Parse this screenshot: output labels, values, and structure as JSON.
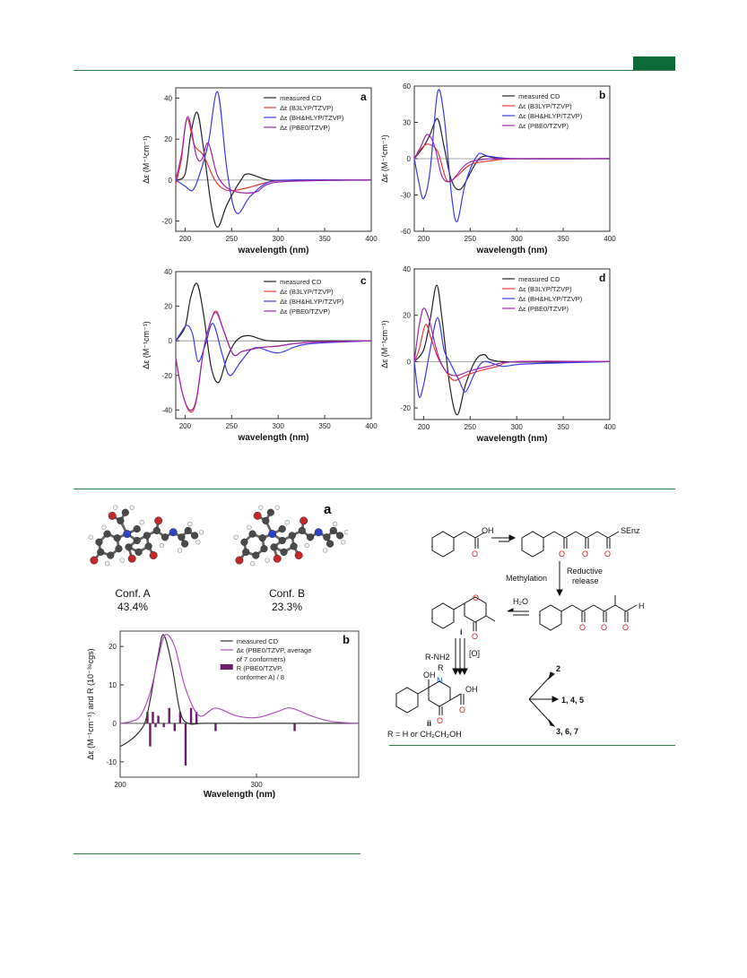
{
  "header": {
    "accent_color": "#0b6b36"
  },
  "cd_panels": [
    {
      "letter": "a",
      "ylabel": "Δε (M⁻¹cm⁻¹)",
      "xlabel": "wavelength (nm)",
      "yticks": [
        "40",
        "20",
        "0",
        "-20"
      ],
      "xticks": [
        "200",
        "250",
        "300",
        "350",
        "400"
      ],
      "legend": [
        "measured CD",
        "Δε (B3LYP/TZVP)",
        "Δε (BH&HLYP/TZVP)",
        "Δε (PBE0/TZVP)"
      ]
    },
    {
      "letter": "b",
      "ylabel": "Δε (M⁻¹cm⁻¹)",
      "xlabel": "wavelength (nm)",
      "yticks": [
        "60",
        "30",
        "0",
        "-30",
        "-60"
      ],
      "xticks": [
        "200",
        "250",
        "300",
        "350",
        "400"
      ],
      "legend": [
        "measured CD",
        "Δε (B3LYP/TZVP)",
        "Δε (BH&HLYP/TZVP)",
        "Δε (PBE0/TZVP)"
      ]
    },
    {
      "letter": "c",
      "ylabel": "Δε (M⁻¹cm⁻¹)",
      "xlabel": "wavelength (nm)",
      "yticks": [
        "40",
        "20",
        "0",
        "-20",
        "-40"
      ],
      "xticks": [
        "200",
        "250",
        "300",
        "350",
        "400"
      ],
      "legend": [
        "measured CD",
        "Δε (B3LYP/TZVP)",
        "Δε (BH&HLYP/TZVP)",
        "Δε (PBE0/TZVP)"
      ]
    },
    {
      "letter": "d",
      "ylabel": "Δε (M⁻¹cm⁻¹)",
      "xlabel": "wavelength (nm)",
      "yticks": [
        "40",
        "20",
        "0",
        "-20"
      ],
      "xticks": [
        "200",
        "250",
        "300",
        "350",
        "400"
      ],
      "legend": [
        "measured CD",
        "Δε (B3LYP/TZVP)",
        "Δε (BH&HLYP/TZVP)",
        "Δε (PBE0/TZVP)"
      ]
    }
  ],
  "conformers": {
    "letter": "a",
    "a_name": "Conf. A",
    "a_pct": "43.4%",
    "b_name": "Conf. B",
    "b_pct": "23.3%"
  },
  "cd_b": {
    "letter": "b",
    "ylabel": "Δε (M⁻¹cm⁻¹) and R (10⁻³⁹cgs)",
    "xlabel": "Wavelength (nm)",
    "yticks": [
      "20",
      "10",
      "0",
      "-10"
    ],
    "xticks": [
      "200",
      "300"
    ],
    "legend": [
      "measured CD",
      "Δε (PBE0/TZVP, average",
      "of 7 conformers)",
      "R (PBE0/TZVP,",
      "conformer A) / 8"
    ]
  },
  "scheme": {
    "acid": "OH",
    "senz": "SEnz",
    "methylation": "Methylation",
    "reductive_1": "Reductive",
    "reductive_2": "release",
    "h2o": "H₂O",
    "aldehyde_h": "H",
    "step_i": "i",
    "rnh2": "R-NH2",
    "ox": "[O]",
    "oh": "OH",
    "r": "R",
    "n": "N",
    "step_ii": "ii",
    "r_def": "R = H or CH₂CH₂OH",
    "out1": "2",
    "out2": "1, 4, 5",
    "out3": "3, 6, 7"
  },
  "chart_data": [
    {
      "type": "line",
      "xlabel": "wavelength (nm)",
      "ylabel": "Δε (M⁻¹cm⁻¹)",
      "xlim": [
        190,
        400
      ],
      "ylim": [
        -25,
        45
      ],
      "series": [
        {
          "name": "measured CD",
          "color": "#222222",
          "x": [
            190,
            200,
            206,
            213,
            220,
            228,
            235,
            245,
            260,
            268,
            290,
            320,
            400
          ],
          "y": [
            0,
            3,
            22,
            33,
            15,
            -12,
            -23,
            -12,
            0,
            3,
            0,
            0,
            0
          ]
        },
        {
          "name": "Δε (B3LYP/TZVP)",
          "color": "#e53935",
          "x": [
            190,
            196,
            202,
            210,
            220,
            232,
            245,
            265,
            290,
            320,
            400
          ],
          "y": [
            -2,
            10,
            30,
            17,
            12,
            0,
            -5,
            -4,
            -1,
            0,
            0
          ]
        },
        {
          "name": "Δε (BH&HLYP/TZVP)",
          "color": "#3a3ae8",
          "x": [
            190,
            200,
            208,
            215,
            225,
            235,
            245,
            255,
            270,
            290,
            320,
            400
          ],
          "y": [
            0,
            -3,
            -5,
            2,
            18,
            43,
            5,
            -16,
            -8,
            -1,
            0,
            0
          ]
        },
        {
          "name": "Δε (PBE0/TZVP)",
          "color": "#9c27b0",
          "x": [
            190,
            196,
            203,
            212,
            218,
            225,
            235,
            250,
            275,
            300,
            400
          ],
          "y": [
            0,
            12,
            31,
            12,
            10,
            18,
            2,
            -5,
            -6,
            -1,
            0
          ]
        }
      ]
    },
    {
      "type": "line",
      "xlabel": "wavelength (nm)",
      "ylabel": "Δε (M⁻¹cm⁻¹)",
      "xlim": [
        190,
        400
      ],
      "ylim": [
        -60,
        60
      ],
      "series": [
        {
          "name": "measured CD",
          "color": "#222222",
          "x": [
            190,
            200,
            207,
            215,
            222,
            230,
            240,
            255,
            265,
            290,
            400
          ],
          "y": [
            0,
            10,
            20,
            33,
            10,
            -18,
            -25,
            -5,
            2,
            0,
            0
          ]
        },
        {
          "name": "Δε (B3LYP/TZVP)",
          "color": "#e53935",
          "x": [
            190,
            197,
            205,
            215,
            225,
            235,
            250,
            270,
            300,
            400
          ],
          "y": [
            0,
            8,
            12,
            6,
            -18,
            -15,
            -5,
            -2,
            0,
            0
          ]
        },
        {
          "name": "Δε (BH&HLYP/TZVP)",
          "color": "#3a3ae8",
          "x": [
            190,
            195,
            200,
            207,
            215,
            222,
            230,
            236,
            245,
            258,
            270,
            300,
            400
          ],
          "y": [
            0,
            -20,
            -33,
            -10,
            55,
            35,
            -30,
            -52,
            -20,
            3,
            2,
            0,
            0
          ]
        },
        {
          "name": "Δε (PBE0/TZVP)",
          "color": "#9c27b0",
          "x": [
            190,
            197,
            204,
            212,
            220,
            230,
            245,
            260,
            290,
            400
          ],
          "y": [
            0,
            10,
            20,
            10,
            -15,
            -18,
            -5,
            -1,
            0,
            0
          ]
        }
      ]
    },
    {
      "type": "line",
      "xlabel": "wavelength (nm)",
      "ylabel": "Δε (M⁻¹cm⁻¹)",
      "xlim": [
        190,
        400
      ],
      "ylim": [
        -45,
        40
      ],
      "series": [
        {
          "name": "measured CD",
          "color": "#222222",
          "x": [
            190,
            200,
            206,
            213,
            220,
            228,
            236,
            245,
            255,
            268,
            290,
            330,
            400
          ],
          "y": [
            0,
            8,
            25,
            33,
            15,
            -15,
            -24,
            -10,
            0,
            3,
            0,
            0,
            0
          ]
        },
        {
          "name": "Δε (B3LYP/TZVP)",
          "color": "#e53935",
          "x": [
            190,
            197,
            205,
            212,
            220,
            228,
            234,
            242,
            252,
            262,
            280,
            300,
            330,
            400
          ],
          "y": [
            -10,
            -30,
            -41,
            -35,
            -5,
            12,
            17,
            5,
            -8,
            -6,
            -4,
            -3,
            -1,
            0
          ]
        },
        {
          "name": "Δε (BH&HLYP/TZVP)",
          "color": "#3a3ae8",
          "x": [
            190,
            196,
            202,
            208,
            214,
            222,
            230,
            240,
            248,
            260,
            275,
            300,
            330,
            400
          ],
          "y": [
            0,
            5,
            9,
            4,
            -12,
            -2,
            10,
            -8,
            -20,
            -12,
            -4,
            -7,
            -2,
            0
          ]
        },
        {
          "name": "Δε (PBE0/TZVP)",
          "color": "#9c27b0",
          "x": [
            190,
            197,
            205,
            212,
            220,
            228,
            234,
            242,
            252,
            262,
            280,
            300,
            330,
            400
          ],
          "y": [
            -10,
            -30,
            -40,
            -34,
            -5,
            12,
            16,
            5,
            -8,
            -6,
            -4,
            -3,
            -1,
            0
          ]
        }
      ]
    },
    {
      "type": "line",
      "xlabel": "wavelength (nm)",
      "ylabel": "Δε (M⁻¹cm⁻¹)",
      "xlim": [
        190,
        400
      ],
      "ylim": [
        -25,
        40
      ],
      "series": [
        {
          "name": "measured CD",
          "color": "#222222",
          "x": [
            190,
            200,
            207,
            214,
            220,
            228,
            236,
            245,
            255,
            265,
            285,
            400
          ],
          "y": [
            0,
            5,
            18,
            33,
            18,
            -10,
            -23,
            -10,
            0,
            3,
            0,
            0
          ]
        },
        {
          "name": "Δε (B3LYP/TZVP)",
          "color": "#e53935",
          "x": [
            190,
            195,
            202,
            208,
            215,
            222,
            232,
            245,
            260,
            280,
            300,
            400
          ],
          "y": [
            0,
            5,
            16,
            10,
            2,
            -3,
            -8,
            -6,
            -4,
            -2,
            0,
            0
          ]
        },
        {
          "name": "Δε (BH&HLYP/TZVP)",
          "color": "#3a3ae8",
          "x": [
            190,
            195,
            200,
            207,
            215,
            222,
            228,
            238,
            245,
            255,
            265,
            285,
            310,
            400
          ],
          "y": [
            0,
            -15,
            -10,
            5,
            19,
            5,
            0,
            -8,
            -13,
            -5,
            0,
            -2,
            -1,
            0
          ]
        },
        {
          "name": "Δε (PBE0/TZVP)",
          "color": "#9c27b0",
          "x": [
            190,
            195,
            200,
            206,
            212,
            218,
            226,
            236,
            250,
            270,
            300,
            400
          ],
          "y": [
            0,
            15,
            23,
            18,
            8,
            0,
            -5,
            -6,
            -4,
            -2,
            0,
            0
          ]
        }
      ]
    },
    {
      "type": "line",
      "xlabel": "Wavelength (nm)",
      "ylabel": "Δε (M⁻¹cm⁻¹) and R (10⁻³⁹cgs)",
      "xlim": [
        200,
        375
      ],
      "ylim": [
        -14,
        24
      ],
      "series": [
        {
          "name": "measured CD",
          "color": "#333333",
          "x": [
            200,
            205,
            212,
            218,
            222,
            228,
            232,
            238,
            244,
            250,
            262,
            300,
            375
          ],
          "y": [
            -6,
            -5,
            -3,
            0,
            6,
            18,
            23,
            15,
            3,
            0,
            0,
            0,
            0
          ]
        },
        {
          "name": "Δε (PBE0/TZVP, average of 7 conformers)",
          "color": "#b04fc0",
          "x": [
            200,
            208,
            215,
            222,
            228,
            233,
            240,
            248,
            258,
            270,
            285,
            300,
            315,
            325,
            340,
            355,
            375
          ],
          "y": [
            0,
            0.5,
            2,
            8,
            17,
            23,
            20,
            9,
            2,
            4,
            2,
            1.5,
            3,
            4,
            2,
            0.5,
            0
          ]
        },
        {
          "name": "R (PBE0/TZVP, conformer A) / 8",
          "color": "#6a1b6a",
          "x": [
            220,
            222,
            224,
            226,
            228,
            232,
            236,
            240,
            244,
            248,
            252,
            256,
            270,
            328
          ],
          "y": [
            3,
            -6,
            3,
            -1,
            2,
            -1,
            4,
            -2,
            3,
            -11,
            4,
            3,
            -2,
            -2
          ]
        }
      ]
    }
  ]
}
